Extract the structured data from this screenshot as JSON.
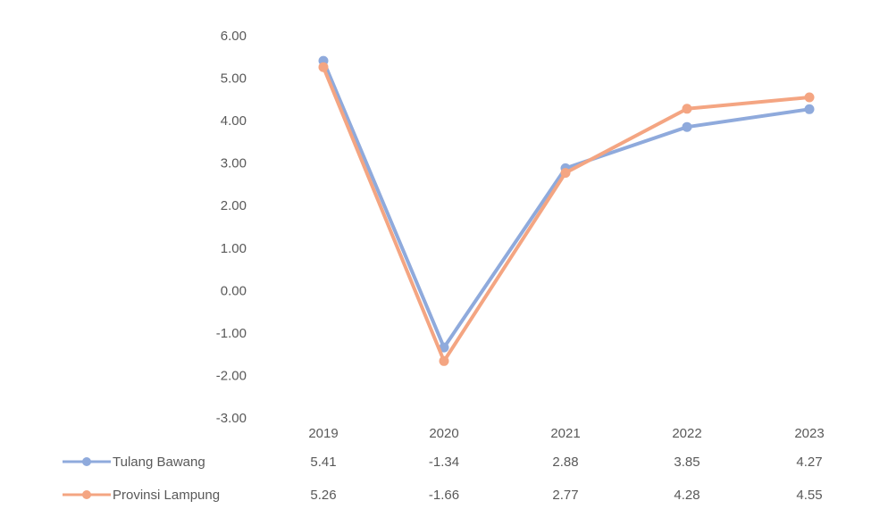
{
  "chart_data": {
    "type": "line",
    "categories": [
      "2019",
      "2020",
      "2021",
      "2022",
      "2023"
    ],
    "series": [
      {
        "name": "Tulang Bawang",
        "values": [
          5.41,
          -1.34,
          2.88,
          3.85,
          4.27
        ],
        "labels": [
          "5.41",
          "-1.34",
          "2.88",
          "3.85",
          "4.27"
        ],
        "color": "#8FAADC"
      },
      {
        "name": "Provinsi Lampung",
        "values": [
          5.26,
          -1.66,
          2.77,
          4.28,
          4.55
        ],
        "labels": [
          "5.26",
          "-1.66",
          "2.77",
          "4.28",
          "4.55"
        ],
        "color": "#F4A582"
      }
    ],
    "y_ticks": [
      "6.00",
      "5.00",
      "4.00",
      "3.00",
      "2.00",
      "1.00",
      "0.00",
      "-1.00",
      "-2.00",
      "-3.00"
    ],
    "ylim": [
      -3,
      6
    ],
    "grid": false,
    "legend": "data-table-below"
  }
}
